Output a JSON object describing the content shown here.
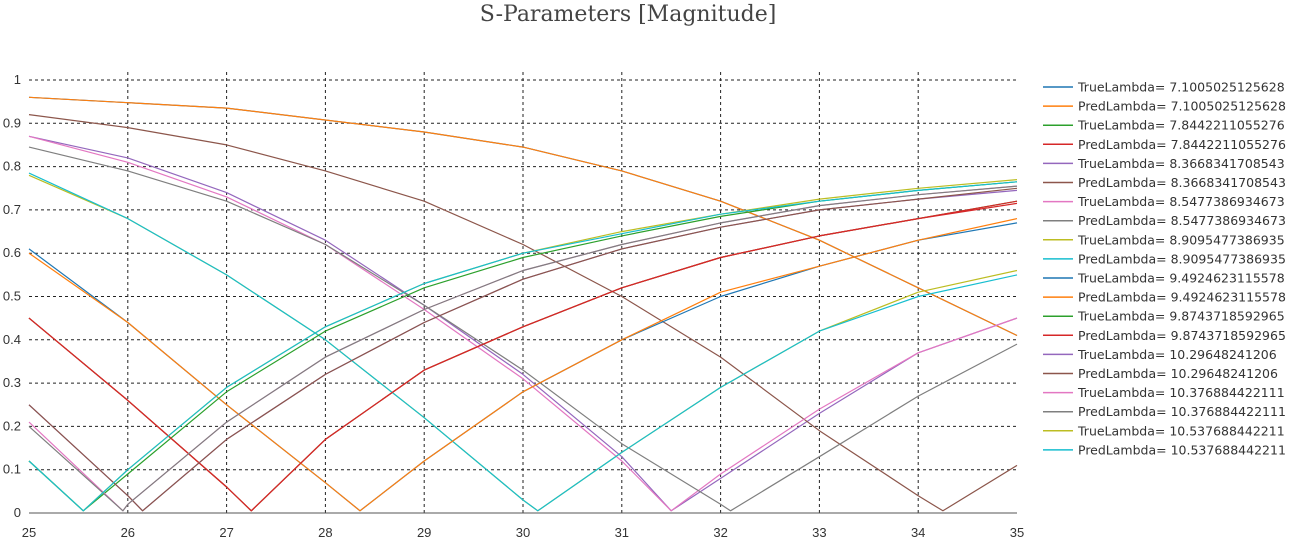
{
  "chart_data": {
    "type": "line",
    "title": "S-Parameters [Magnitude]",
    "xlabel": "",
    "ylabel": "",
    "xlim": [
      25,
      35
    ],
    "ylim": [
      0,
      1
    ],
    "x_ticks": [
      "25",
      "26",
      "27",
      "28",
      "29",
      "30",
      "31",
      "32",
      "33",
      "34",
      "35"
    ],
    "y_ticks": [
      "0",
      "0.1",
      "0.2",
      "0.3",
      "0.4",
      "0.5",
      "0.6",
      "0.7",
      "0.8",
      "0.9",
      "1"
    ],
    "grid": "dotted",
    "legend_position": "right",
    "series": [
      {
        "name": "TrueLambda= 7.1005025125628",
        "color": "#1f77b4",
        "x": [
          25,
          27,
          29,
          30,
          31,
          32,
          33,
          34,
          35
        ],
        "y": [
          0.96,
          0.935,
          0.88,
          0.845,
          0.79,
          0.72,
          0.63,
          0.52,
          0.41
        ]
      },
      {
        "name": "PredLambda= 7.1005025125628",
        "color": "#ff7f0e",
        "x": [
          25,
          27,
          29,
          30,
          31,
          32,
          33,
          34,
          35
        ],
        "y": [
          0.96,
          0.935,
          0.88,
          0.845,
          0.79,
          0.72,
          0.63,
          0.52,
          0.41
        ]
      },
      {
        "name": "TrueLambda= 7.8442211055276",
        "color": "#2ca02c",
        "x": [
          25,
          26,
          27,
          27.25,
          28,
          29,
          30,
          31,
          32,
          33,
          34,
          35
        ],
        "y": [
          0.45,
          0.26,
          0.06,
          0.005,
          0.17,
          0.33,
          0.43,
          0.52,
          0.59,
          0.64,
          0.68,
          0.72
        ]
      },
      {
        "name": "PredLambda= 7.8442211055276",
        "color": "#d62728",
        "x": [
          25,
          26,
          27,
          27.25,
          28,
          29,
          30,
          31,
          32,
          33,
          34,
          35
        ],
        "y": [
          0.45,
          0.26,
          0.06,
          0.005,
          0.17,
          0.33,
          0.43,
          0.52,
          0.59,
          0.64,
          0.68,
          0.715
        ]
      },
      {
        "name": "TrueLambda= 8.3668341708543",
        "color": "#9467bd",
        "x": [
          25,
          26,
          27,
          28,
          29,
          30,
          31,
          31.5,
          32,
          33,
          34,
          35
        ],
        "y": [
          0.87,
          0.82,
          0.74,
          0.63,
          0.48,
          0.32,
          0.13,
          0.005,
          0.08,
          0.23,
          0.37,
          0.45
        ]
      },
      {
        "name": "PredLambda= 8.3668341708543",
        "color": "#8c564b",
        "x": [
          25,
          26,
          27,
          28,
          29,
          30,
          31,
          32,
          33,
          34,
          34.25,
          35
        ],
        "y": [
          0.92,
          0.89,
          0.85,
          0.79,
          0.72,
          0.62,
          0.5,
          0.36,
          0.19,
          0.04,
          0.005,
          0.11
        ]
      },
      {
        "name": "TrueLambda= 8.5477386934673",
        "color": "#e377c2",
        "x": [
          25,
          26,
          27,
          28,
          29,
          30,
          31,
          31.5,
          32,
          33,
          34,
          35
        ],
        "y": [
          0.87,
          0.81,
          0.73,
          0.62,
          0.47,
          0.31,
          0.12,
          0.005,
          0.09,
          0.24,
          0.37,
          0.45
        ]
      },
      {
        "name": "PredLambda= 8.5477386934673",
        "color": "#7f7f7f",
        "x": [
          25,
          26,
          27,
          28,
          29,
          30,
          31,
          32,
          32.1,
          33,
          34,
          35
        ],
        "y": [
          0.845,
          0.79,
          0.72,
          0.62,
          0.48,
          0.33,
          0.16,
          0.02,
          0.005,
          0.13,
          0.27,
          0.39
        ]
      },
      {
        "name": "TrueLambda= 8.9095477386935",
        "color": "#bcbd22",
        "x": [
          25,
          26,
          27,
          28,
          29,
          30,
          30.15,
          31,
          32,
          33,
          34,
          35
        ],
        "y": [
          0.78,
          0.68,
          0.55,
          0.4,
          0.22,
          0.03,
          0.005,
          0.14,
          0.29,
          0.42,
          0.51,
          0.56
        ]
      },
      {
        "name": "PredLambda= 8.9095477386935",
        "color": "#17becf",
        "x": [
          25,
          26,
          27,
          28,
          29,
          30,
          30.15,
          31,
          32,
          33,
          34,
          35
        ],
        "y": [
          0.785,
          0.68,
          0.55,
          0.4,
          0.22,
          0.03,
          0.005,
          0.14,
          0.29,
          0.42,
          0.5,
          0.55
        ]
      },
      {
        "name": "TrueLambda= 9.4924623115578",
        "color": "#1f77b4",
        "x": [
          25,
          26,
          27,
          28,
          28.35,
          29,
          30,
          31,
          32,
          33,
          34,
          35
        ],
        "y": [
          0.61,
          0.44,
          0.25,
          0.07,
          0.005,
          0.12,
          0.28,
          0.4,
          0.5,
          0.57,
          0.63,
          0.67
        ]
      },
      {
        "name": "PredLambda= 9.4924623115578",
        "color": "#ff7f0e",
        "x": [
          25,
          26,
          27,
          28,
          28.35,
          29,
          30,
          31,
          32,
          33,
          34,
          35
        ],
        "y": [
          0.6,
          0.44,
          0.25,
          0.07,
          0.005,
          0.12,
          0.28,
          0.4,
          0.51,
          0.57,
          0.63,
          0.68
        ]
      },
      {
        "name": "TrueLambda= 9.8743718592965",
        "color": "#2ca02c",
        "x": [
          25,
          25.55,
          26,
          27,
          28,
          29,
          30,
          31,
          32,
          33,
          34,
          35
        ],
        "y": [
          0.12,
          0.005,
          0.09,
          0.28,
          0.42,
          0.52,
          0.59,
          0.64,
          0.685,
          0.72,
          0.745,
          0.765
        ]
      },
      {
        "name": "PredLambda= 9.8743718592965",
        "color": "#d62728",
        "x": [
          25,
          26,
          27,
          27.25,
          28,
          29,
          30,
          31,
          32,
          33,
          34,
          35
        ],
        "y": [
          0.45,
          0.26,
          0.06,
          0.005,
          0.17,
          0.33,
          0.43,
          0.52,
          0.59,
          0.64,
          0.68,
          0.72
        ]
      },
      {
        "name": "TrueLambda= 10.29648241206",
        "color": "#9467bd",
        "x": [
          25,
          26,
          26.15,
          27,
          28,
          29,
          30,
          31,
          32,
          33,
          34,
          35
        ],
        "y": [
          0.25,
          0.04,
          0.005,
          0.17,
          0.32,
          0.44,
          0.54,
          0.61,
          0.66,
          0.7,
          0.725,
          0.745
        ]
      },
      {
        "name": "PredLambda= 10.29648241206",
        "color": "#8c564b",
        "x": [
          25,
          26,
          26.15,
          27,
          28,
          29,
          30,
          31,
          32,
          33,
          34,
          35
        ],
        "y": [
          0.25,
          0.04,
          0.005,
          0.17,
          0.32,
          0.44,
          0.54,
          0.61,
          0.66,
          0.7,
          0.725,
          0.75
        ]
      },
      {
        "name": "TrueLambda= 10.376884422111",
        "color": "#e377c2",
        "x": [
          25,
          25.95,
          26,
          27,
          28,
          29,
          30,
          31,
          32,
          33,
          34,
          35
        ],
        "y": [
          0.21,
          0.005,
          0.02,
          0.21,
          0.36,
          0.47,
          0.56,
          0.62,
          0.67,
          0.71,
          0.735,
          0.755
        ]
      },
      {
        "name": "PredLambda= 10.376884422111",
        "color": "#7f7f7f",
        "x": [
          25,
          25.95,
          26,
          27,
          28,
          29,
          30,
          31,
          32,
          33,
          34,
          35
        ],
        "y": [
          0.2,
          0.005,
          0.02,
          0.21,
          0.36,
          0.47,
          0.56,
          0.62,
          0.67,
          0.71,
          0.735,
          0.755
        ]
      },
      {
        "name": "TrueLambda= 10.537688442211",
        "color": "#bcbd22",
        "x": [
          25,
          25.55,
          26,
          27,
          28,
          29,
          30,
          31,
          32,
          33,
          34,
          35
        ],
        "y": [
          0.12,
          0.005,
          0.1,
          0.29,
          0.43,
          0.53,
          0.6,
          0.65,
          0.69,
          0.725,
          0.75,
          0.77
        ]
      },
      {
        "name": "PredLambda= 10.537688442211",
        "color": "#17becf",
        "x": [
          25,
          25.55,
          26,
          27,
          28,
          29,
          30,
          31,
          32,
          33,
          34,
          35
        ],
        "y": [
          0.12,
          0.005,
          0.1,
          0.29,
          0.43,
          0.53,
          0.6,
          0.645,
          0.69,
          0.72,
          0.745,
          0.765
        ]
      }
    ]
  }
}
